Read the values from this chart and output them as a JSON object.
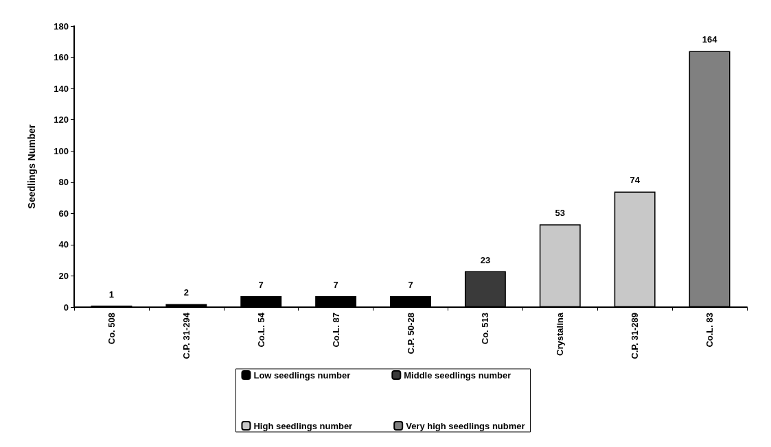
{
  "chart_data": {
    "type": "bar",
    "ylabel": "Seedlings Number",
    "categories": [
      "Co. 508",
      "C.P. 31-294",
      "Co.L. 54",
      "Co.L. 87",
      "C.P. 50-28",
      "Co. 513",
      "Crystalina",
      "C.P. 31-289",
      "Co.L. 83"
    ],
    "series": [
      {
        "name": "Low seedlings number",
        "color": "#000000",
        "values": [
          1,
          2,
          7,
          7,
          7,
          null,
          null,
          null,
          null
        ]
      },
      {
        "name": "Middle seedlings number",
        "color": "#3a3a3a",
        "values": [
          null,
          null,
          null,
          null,
          null,
          23,
          null,
          null,
          null
        ]
      },
      {
        "name": "High seedlings number",
        "color": "#c8c8c8",
        "values": [
          null,
          null,
          null,
          null,
          null,
          null,
          53,
          74,
          null
        ]
      },
      {
        "name": "Very high seedlings nubmer",
        "color": "#808080",
        "values": [
          null,
          null,
          null,
          null,
          null,
          null,
          null,
          null,
          164
        ]
      }
    ],
    "ylim": [
      0,
      180
    ],
    "yticks": [
      0,
      20,
      40,
      60,
      80,
      100,
      120,
      140,
      160,
      180
    ],
    "data_labels": true,
    "grid": false,
    "legend": "bottom"
  }
}
